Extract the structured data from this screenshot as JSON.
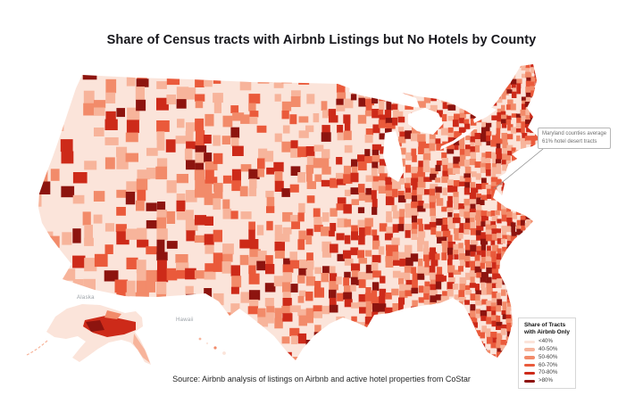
{
  "title": "Share of Census tracts with Airbnb Listings but No Hotels by County",
  "source": "Source: Airbnb analysis of listings on Airbnb and active hotel properties from CoStar",
  "annotation": {
    "line1": "Maryland counties average",
    "line2": "61% hotel desert tracts"
  },
  "insets": {
    "alaska_label": "Alaska",
    "hawaii_label": "Hawaii"
  },
  "legend": {
    "title_line1": "Share of Tracts",
    "title_line2": "with Airbnb Only"
  },
  "chart_data": {
    "type": "choropleth",
    "title": "Share of Census tracts with Airbnb Listings but No Hotels by County",
    "geography": "United States counties (contiguous US with Alaska and Hawaii insets)",
    "metric": "Share of census tracts that have Airbnb listings but no hotels (hotel desert tracts)",
    "legend_title": "Share of Tracts with Airbnb Only",
    "legend_position": "bottom-right",
    "bins": [
      {
        "label": "<40%",
        "color": "#fbe4da"
      },
      {
        "label": "40-50%",
        "color": "#f7b49b"
      },
      {
        "label": "50-60%",
        "color": "#f28b6a"
      },
      {
        "label": "60-70%",
        "color": "#ea5a3b"
      },
      {
        "label": "70-80%",
        "color": "#cd2a19"
      },
      {
        "label": ">80%",
        "color": "#8d140f"
      }
    ],
    "annotations": [
      {
        "text": "Maryland counties average 61% hotel desert tracts",
        "target_region": "Maryland",
        "value_pct": 61
      }
    ],
    "insets": [
      "Alaska",
      "Hawaii"
    ],
    "source": "Source: Airbnb analysis of listings on Airbnb and active hotel properties from CoStar"
  }
}
